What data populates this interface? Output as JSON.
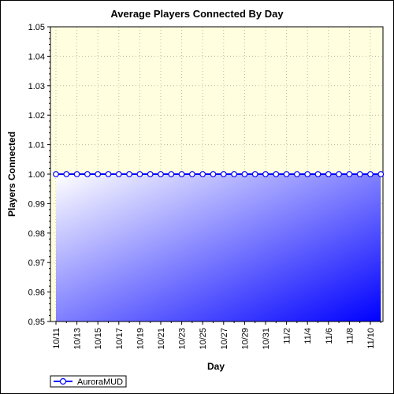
{
  "chart_data": {
    "type": "area",
    "title": "Average Players Connected By Day",
    "xlabel": "Day",
    "ylabel": "Players Connected",
    "ylim": [
      0.95,
      1.05
    ],
    "y_ticks": [
      0.95,
      0.96,
      0.97,
      0.98,
      0.99,
      1.0,
      1.01,
      1.02,
      1.03,
      1.04,
      1.05
    ],
    "y_tick_labels": [
      "0.95",
      "0.96",
      "0.97",
      "0.98",
      "0.99",
      "1.00",
      "1.01",
      "1.02",
      "1.03",
      "1.04",
      "1.05"
    ],
    "x_tick_labels": [
      "10/11",
      "10/13",
      "10/15",
      "10/17",
      "10/19",
      "10/21",
      "10/23",
      "10/25",
      "10/27",
      "10/29",
      "10/31",
      "11/2",
      "11/4",
      "11/6",
      "11/8",
      "11/10"
    ],
    "x": [
      "10/11",
      "10/12",
      "10/13",
      "10/14",
      "10/15",
      "10/16",
      "10/17",
      "10/18",
      "10/19",
      "10/20",
      "10/21",
      "10/22",
      "10/23",
      "10/24",
      "10/25",
      "10/26",
      "10/27",
      "10/28",
      "10/29",
      "10/30",
      "10/31",
      "11/1",
      "11/2",
      "11/3",
      "11/4",
      "11/5",
      "11/6",
      "11/7",
      "11/8",
      "11/9",
      "11/10",
      "11/11"
    ],
    "series": [
      {
        "name": "AuroraMUD",
        "values": [
          1.0,
          1.0,
          1.0,
          1.0,
          1.0,
          1.0,
          1.0,
          1.0,
          1.0,
          1.0,
          1.0,
          1.0,
          1.0,
          1.0,
          1.0,
          1.0,
          1.0,
          1.0,
          1.0,
          1.0,
          1.0,
          1.0,
          1.0,
          1.0,
          1.0,
          1.0,
          1.0,
          1.0,
          1.0,
          1.0,
          1.0,
          1.0
        ],
        "color": "#0000ff"
      }
    ],
    "grid": true,
    "legend": "bottom-left",
    "plot_background": "#ffffe0"
  }
}
